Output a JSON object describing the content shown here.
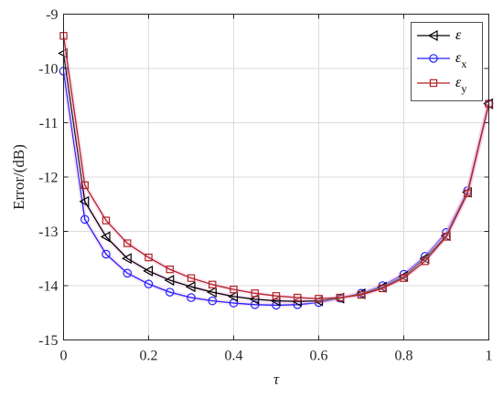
{
  "chart_data": {
    "type": "line",
    "xlabel": "τ",
    "ylabel": "Error/(dB)",
    "xlim": [
      0,
      1
    ],
    "ylim": [
      -15,
      -9
    ],
    "xticks": [
      0,
      0.2,
      0.4,
      0.6,
      0.8,
      1
    ],
    "xtick_labels": [
      "0",
      "0.2",
      "0.4",
      "0.6",
      "0.8",
      "1"
    ],
    "yticks": [
      -15,
      -14,
      -13,
      -12,
      -11,
      -10,
      -9
    ],
    "ytick_labels": [
      "-15",
      "-14",
      "-13",
      "-12",
      "-11",
      "-10",
      "-9"
    ],
    "grid": true,
    "legend_position": "top-right",
    "x": [
      0,
      0.05,
      0.1,
      0.15,
      0.2,
      0.25,
      0.3,
      0.35,
      0.4,
      0.45,
      0.5,
      0.55,
      0.6,
      0.65,
      0.7,
      0.75,
      0.8,
      0.85,
      0.9,
      0.95,
      1
    ],
    "series": [
      {
        "name": "ε",
        "name_base": "ε",
        "name_sub": "",
        "color": "#000000",
        "marker": "triangle-left",
        "values": [
          -9.72,
          -12.45,
          -13.1,
          -13.5,
          -13.73,
          -13.9,
          -14.02,
          -14.12,
          -14.2,
          -14.25,
          -14.28,
          -14.29,
          -14.28,
          -14.23,
          -14.15,
          -14.03,
          -13.83,
          -13.5,
          -13.08,
          -12.28,
          -10.65
        ]
      },
      {
        "name": "εx",
        "name_base": "ε",
        "name_sub": "x",
        "color": "#2121ff",
        "marker": "circle",
        "values": [
          -10.05,
          -12.78,
          -13.42,
          -13.77,
          -13.97,
          -14.12,
          -14.22,
          -14.28,
          -14.32,
          -14.35,
          -14.36,
          -14.35,
          -14.31,
          -14.23,
          -14.14,
          -14.0,
          -13.79,
          -13.46,
          -13.02,
          -12.25,
          -10.65
        ]
      },
      {
        "name": "εy",
        "name_base": "ε",
        "name_sub": "y",
        "color": "#b22222",
        "marker": "square",
        "values": [
          -9.4,
          -12.15,
          -12.8,
          -13.22,
          -13.48,
          -13.7,
          -13.86,
          -13.98,
          -14.07,
          -14.14,
          -14.19,
          -14.22,
          -14.24,
          -14.22,
          -14.17,
          -14.05,
          -13.86,
          -13.55,
          -13.1,
          -12.3,
          -10.65
        ]
      }
    ]
  }
}
